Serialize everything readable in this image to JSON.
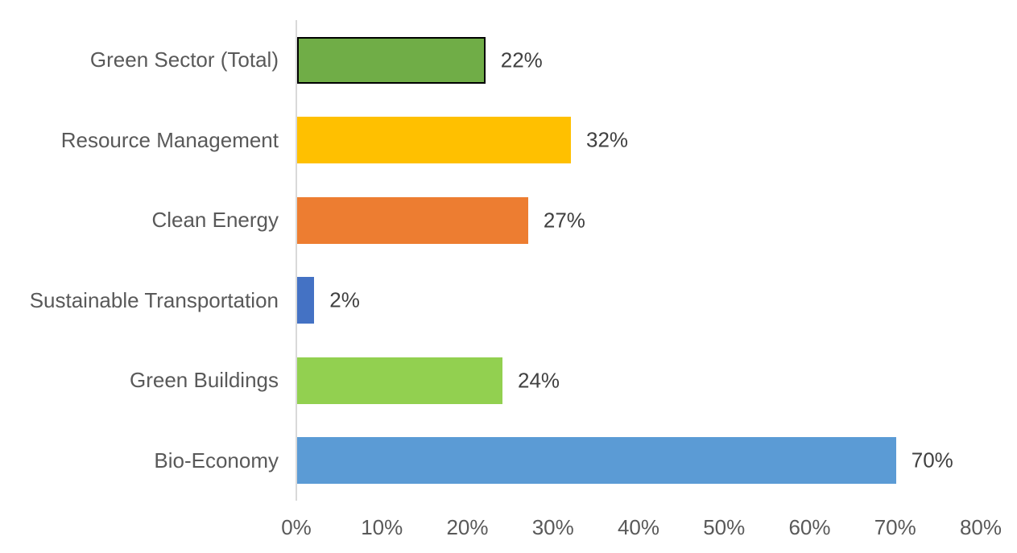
{
  "chart_data": {
    "type": "bar",
    "orientation": "horizontal",
    "title": "",
    "xlabel": "",
    "ylabel": "",
    "categories": [
      "Green Sector (Total)",
      "Resource Management",
      "Clean Energy",
      "Sustainable Transportation",
      "Green Buildings",
      "Bio-Economy"
    ],
    "values": [
      22,
      32,
      27,
      2,
      24,
      70
    ],
    "value_labels": [
      "22%",
      "32%",
      "27%",
      "2%",
      "24%",
      "70%"
    ],
    "bar_colors": [
      "#70AD47",
      "#FFC000",
      "#ED7D31",
      "#4472C4",
      "#92D050",
      "#5B9BD5"
    ],
    "bar_border_colors": [
      "#000000",
      null,
      null,
      null,
      null,
      null
    ],
    "bar_border_width_px": 2,
    "xlim": [
      0,
      80
    ],
    "x_tick_labels": [
      "0%",
      "10%",
      "20%",
      "30%",
      "40%",
      "50%",
      "60%",
      "70%",
      "80%"
    ],
    "grid": false,
    "legend": false,
    "colors": {
      "axis_line": "#D9D9D9",
      "category_label_text": "#595959",
      "tick_label_text": "#595959",
      "data_label_text": "#404040",
      "background": "#FFFFFF"
    }
  }
}
